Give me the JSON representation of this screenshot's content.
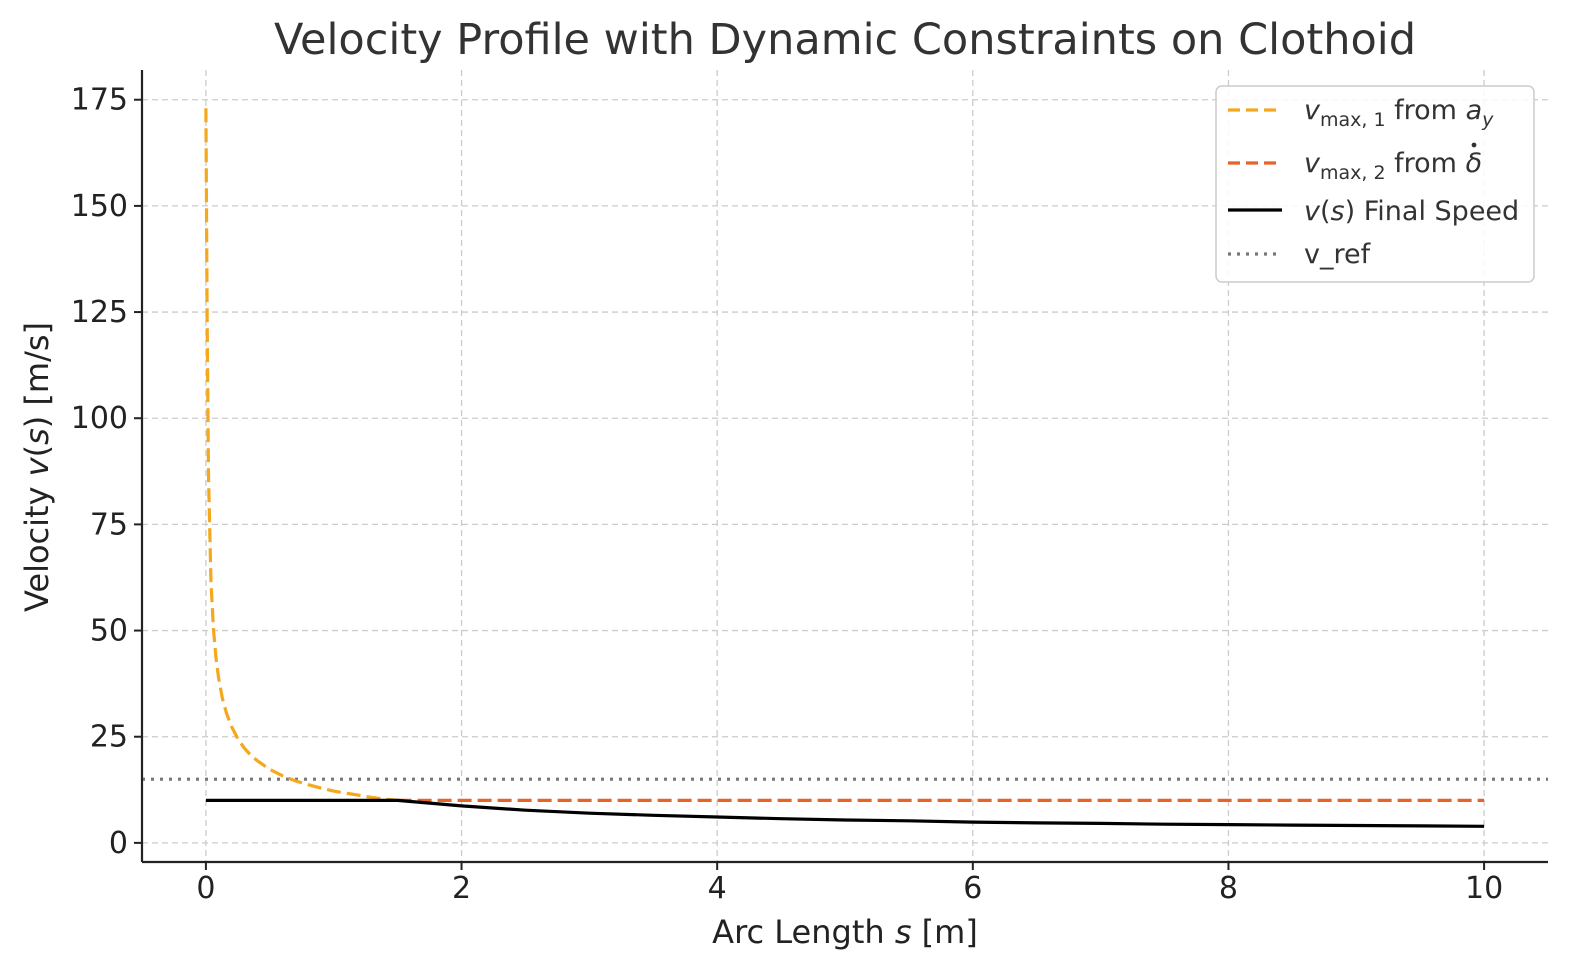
{
  "chart_data": {
    "type": "line",
    "title": "Velocity Profile with Dynamic Constraints on Clothoid",
    "xlabel": {
      "prefix": "Arc Length ",
      "var": "s",
      "suffix": " [m]"
    },
    "ylabel": {
      "prefix": "Velocity ",
      "var": "v",
      "open": "(",
      "arg": "s",
      "close": ")",
      "suffix": " [m/s]"
    },
    "xlim": [
      -0.5,
      10.5
    ],
    "ylim": [
      -4.5,
      182
    ],
    "xticks": [
      0,
      2,
      4,
      6,
      8,
      10
    ],
    "xtick_labels": [
      "0",
      "2",
      "4",
      "6",
      "8",
      "10"
    ],
    "yticks": [
      0,
      25,
      50,
      75,
      100,
      125,
      150,
      175
    ],
    "ytick_labels": [
      "0",
      "25",
      "50",
      "75",
      "100",
      "125",
      "150",
      "175"
    ],
    "grid": true,
    "legend_position": "top-right",
    "series": [
      {
        "name": "v_max,1 from a_y",
        "legend": {
          "v": "v",
          "sub": "max, 1",
          "mid": " from ",
          "tail_var": "a",
          "tail_sub": "y"
        },
        "color": "#f4a81d",
        "style": "dashed",
        "x": [
          0.0,
          0.01,
          0.02,
          0.04,
          0.06,
          0.08,
          0.1,
          0.13,
          0.16,
          0.2,
          0.25,
          0.3,
          0.35,
          0.4,
          0.5,
          0.6,
          0.7,
          0.8,
          0.9,
          1.0,
          1.1,
          1.2,
          1.3,
          1.4,
          1.5
        ],
        "y": [
          173,
          122,
          86.5,
          61.2,
          49.9,
          43.3,
          38.7,
          33.9,
          30.6,
          27.4,
          24.5,
          22.3,
          20.7,
          19.4,
          17.3,
          15.8,
          14.6,
          13.7,
          12.9,
          12.2,
          11.7,
          11.2,
          10.7,
          10.3,
          10.0
        ]
      },
      {
        "name": "v_max,2 from δ̇",
        "legend": {
          "v": "v",
          "sub": "max, 2",
          "mid": " from ",
          "tail_var": "δ"
        },
        "color": "#e8632a",
        "style": "dashed",
        "x": [
          1.5,
          10.0
        ],
        "y": [
          10.0,
          10.0
        ]
      },
      {
        "name": "v(s) Final Speed",
        "legend": {
          "v": "v",
          "open": "(",
          "arg": "s",
          "close": ")",
          "tail": " Final Speed"
        },
        "color": "#000000",
        "style": "solid",
        "x": [
          0.0,
          1.5,
          2.0,
          2.5,
          3.0,
          3.5,
          4.0,
          4.5,
          5.0,
          5.5,
          6.0,
          6.5,
          7.0,
          7.5,
          8.0,
          8.5,
          9.0,
          9.5,
          10.0
        ],
        "y": [
          10.0,
          10.0,
          8.7,
          7.7,
          7.0,
          6.5,
          6.1,
          5.7,
          5.4,
          5.2,
          4.9,
          4.7,
          4.6,
          4.4,
          4.3,
          4.2,
          4.1,
          4.0,
          3.9
        ]
      },
      {
        "name": "v_ref",
        "legend": {
          "text": "v_ref"
        },
        "color": "#777777",
        "style": "dotted",
        "x": [
          -0.5,
          10.5
        ],
        "y": [
          15.0,
          15.0
        ]
      }
    ]
  }
}
